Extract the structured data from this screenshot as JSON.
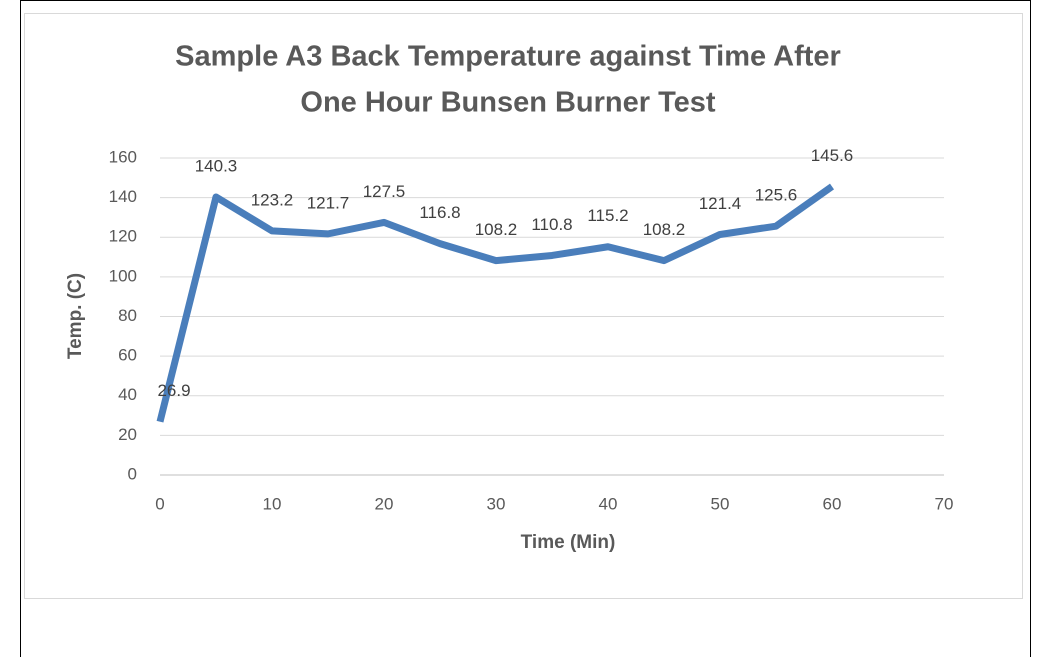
{
  "chart_data": {
    "type": "line",
    "title": [
      "Sample A3 Back Temperature against Time After",
      "One Hour Bunsen Burner Test"
    ],
    "x_label": "Time (Min)",
    "y_label": "Temp. (C)",
    "x": [
      0,
      5,
      10,
      15,
      20,
      25,
      30,
      35,
      40,
      45,
      50,
      55,
      60
    ],
    "series": [
      {
        "name": "Temp",
        "color": "#4a7ebb",
        "values": [
          26.9,
          140.3,
          123.2,
          121.7,
          127.5,
          116.8,
          108.2,
          110.8,
          115.2,
          108.2,
          121.4,
          125.6,
          145.6
        ]
      }
    ],
    "xlim": [
      0,
      70
    ],
    "xticks": [
      0,
      10,
      20,
      30,
      40,
      50,
      60,
      70
    ],
    "ylim": [
      0,
      160
    ],
    "yticks": [
      0,
      20,
      40,
      60,
      80,
      100,
      120,
      140,
      160
    ],
    "grid": true,
    "data_labels": true
  }
}
